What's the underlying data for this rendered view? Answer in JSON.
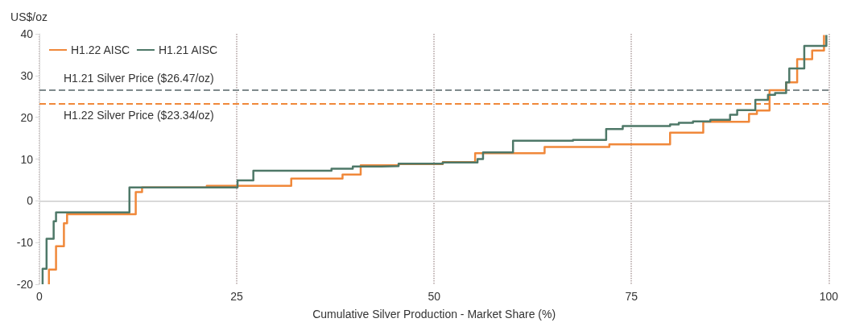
{
  "chart_data": {
    "type": "step",
    "xlabel": "Cumulative Silver Production - Market Share (%)",
    "ylabel": "US$/oz",
    "xlim": [
      0,
      100
    ],
    "xticks": [
      0,
      25,
      50,
      75,
      100
    ],
    "ylim": [
      -20,
      40
    ],
    "yticks": [
      -20,
      -10,
      0,
      10,
      20,
      30,
      40
    ],
    "grid": "x",
    "legend": "top left",
    "series": [
      {
        "name": "H1.22 AISC",
        "color": "#f0883a",
        "x": [
          1.2,
          1.2,
          2.1,
          3.1,
          3.5,
          12.2,
          13.0,
          21.2,
          31.9,
          38.4,
          40.7,
          45.5,
          51.1,
          55.2,
          64.0,
          72.2,
          79.9,
          84.1,
          89.9,
          90.9,
          92.5,
          94.6,
          96.0,
          97.9,
          99.4,
          99.4
        ],
        "values": [
          -20,
          -16.5,
          -10.9,
          -5.4,
          -3.2,
          2.1,
          3.2,
          3.6,
          5.3,
          6.3,
          8.5,
          8.8,
          9.3,
          11.4,
          12.9,
          13.5,
          16.3,
          18.9,
          20.8,
          21.6,
          26.5,
          28.4,
          33.9,
          36.0,
          36.0,
          39.7
        ]
      },
      {
        "name": "H1.21 AISC",
        "color": "#4e7868",
        "x": [
          0.4,
          0.4,
          0.9,
          1.8,
          2.1,
          11.4,
          25.1,
          27.1,
          37.0,
          39.7,
          43.3,
          45.5,
          51.1,
          55.5,
          56.2,
          60.0,
          67.6,
          71.8,
          73.9,
          79.9,
          81.0,
          82.8,
          85.0,
          87.5,
          88.4,
          90.7,
          92.3,
          93.2,
          94.6,
          95.0,
          96.9,
          99.7,
          99.7
        ],
        "values": [
          -20,
          -16.3,
          -9.1,
          -4.9,
          -2.8,
          3.2,
          4.9,
          7.2,
          7.7,
          8.2,
          8.3,
          8.9,
          9.2,
          10.0,
          11.6,
          14.4,
          14.6,
          17.2,
          17.9,
          18.3,
          18.7,
          19.0,
          19.4,
          20.6,
          21.7,
          24.2,
          25.4,
          25.8,
          28.4,
          31.7,
          37.1,
          37.1,
          39.7
        ]
      }
    ],
    "ref_lines": [
      {
        "axis": "y",
        "value": 26.47,
        "label": "H1.21 Silver Price ($26.47/oz)",
        "color": "#7f8a8c",
        "line_style": "dashed"
      },
      {
        "axis": "y",
        "value": 23.34,
        "label": "H1.22 Silver Price ($23.34/oz)",
        "color": "#f0883a",
        "line_style": "dashed"
      },
      {
        "axis": "y",
        "value": 0,
        "color": "#d9d9d9",
        "line_style": "solid"
      }
    ]
  }
}
